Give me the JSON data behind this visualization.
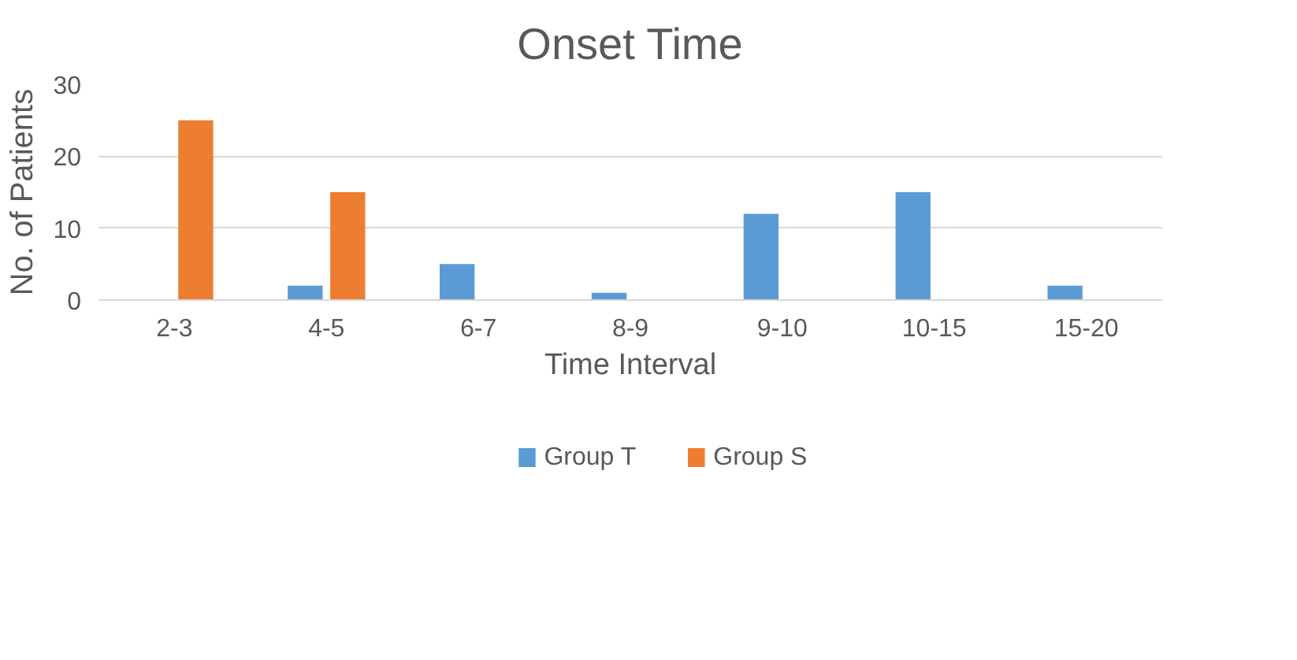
{
  "chart_data": {
    "type": "bar",
    "title": "Onset Time",
    "xlabel": "Time Interval",
    "ylabel": "No. of Patients",
    "categories": [
      "2-3",
      "4-5",
      "6-7",
      "8-9",
      "9-10",
      "10-15",
      "15-20"
    ],
    "series": [
      {
        "name": "Group T",
        "color": "#5b9bd5",
        "values": [
          0,
          2,
          5,
          1,
          12,
          15,
          2
        ]
      },
      {
        "name": "Group S",
        "color": "#ed7d31",
        "values": [
          25,
          15,
          0,
          0,
          0,
          0,
          0
        ]
      }
    ],
    "ylim": [
      0,
      30
    ],
    "yticks": [
      0,
      10,
      20,
      30
    ],
    "grid": "y",
    "legend": "bottom"
  }
}
